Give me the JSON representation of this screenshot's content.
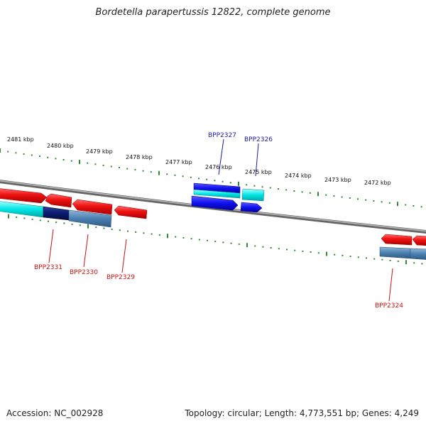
{
  "title": "Bordetella parapertussis 12822, complete genome",
  "footer": {
    "accession": "Accession: NC_002928",
    "summary": "Topology: circular; Length: 4,773,551 bp; Genes: 4,249"
  },
  "colors": {
    "backbone": "#888888",
    "tick": "#2e8b2e",
    "forward_gene": "#ee1111",
    "reverse_gene_light": "#00e6e6",
    "reverse_gene_blue": "#1111ee",
    "reverse_gene_navy": "#0a1a6e",
    "reverse_gene_steel": "#4a7fb0",
    "label_blue": "#1a1aaa",
    "label_red": "#cc1111"
  },
  "scale_labels": [
    "2481 kbp",
    "2480 kbp",
    "2479 kbp",
    "2478 kbp",
    "2477 kbp",
    "2476 kbp",
    "2475 kbp",
    "2474 kbp",
    "2473 kbp",
    "2472 kbp"
  ],
  "gene_labels": {
    "bpp2327": "BPP2327",
    "bpp2326": "BPP2326",
    "bpp2331": "BPP2331",
    "bpp2330": "BPP2330",
    "bpp2329": "BPP2329",
    "bpp2324": "BPP2324"
  }
}
